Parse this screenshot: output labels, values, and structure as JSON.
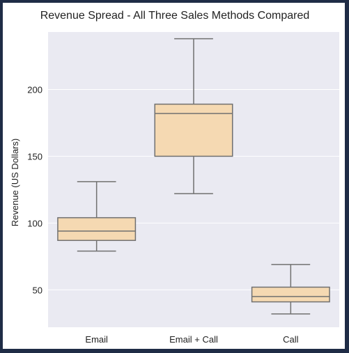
{
  "chart_data": {
    "type": "box",
    "title": "Revenue Spread - All Three Sales Methods Compared",
    "xlabel": "",
    "ylabel": "Revenue (US Dollars)",
    "ylim": [
      22,
      243
    ],
    "yticks": [
      50,
      100,
      150,
      200
    ],
    "grid": true,
    "categories": [
      "Email",
      "Email + Call",
      "Call"
    ],
    "boxes": [
      {
        "category": "Email",
        "whisker_low": 79,
        "q1": 87,
        "median": 94,
        "q3": 104,
        "whisker_high": 131
      },
      {
        "category": "Email + Call",
        "whisker_low": 122,
        "q1": 150,
        "median": 182,
        "q3": 189,
        "whisker_high": 238
      },
      {
        "category": "Call",
        "whisker_low": 32,
        "q1": 41,
        "median": 45,
        "q3": 52,
        "whisker_high": 69
      }
    ]
  },
  "colors": {
    "background_frame": "#1f2c46",
    "figure": "#ffffff",
    "plot_area": "#eaeaf2",
    "grid": "#ffffff",
    "box_fill": "#f5d9b2",
    "box_line": "#707070",
    "text": "#222222"
  }
}
